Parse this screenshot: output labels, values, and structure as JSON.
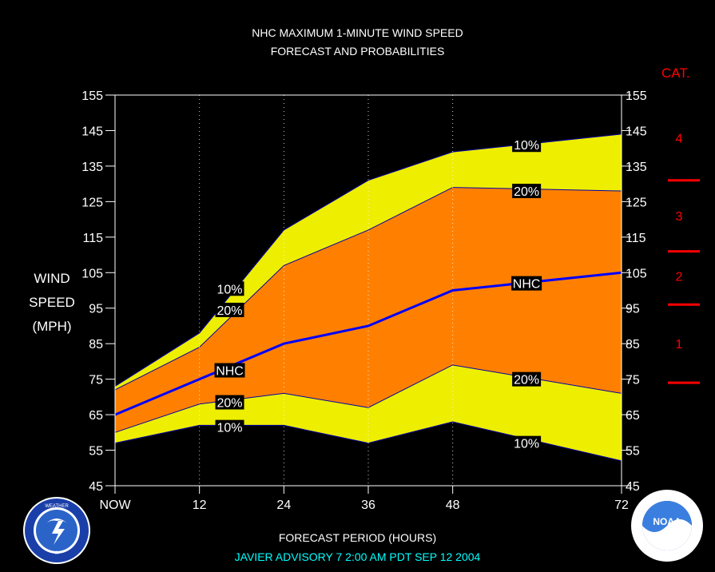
{
  "header": {
    "title_line1": "NHC MAXIMUM 1-MINUTE WIND SPEED",
    "title_line2": "FORECAST AND PROBABILITIES"
  },
  "ylabel_lines": [
    "WIND",
    "SPEED",
    "(MPH)"
  ],
  "cat_title": "CAT.",
  "xlabel": "FORECAST PERIOD (HOURS)",
  "advisory": "JAVIER   ADVISORY  7 2:00  AM  PDT  SEP  12  2004",
  "logos": {
    "left": "national-weather-service-logo",
    "right": "noaa-logo",
    "right_text": "NOAA"
  },
  "colors": {
    "background": "#000000",
    "band_outer": "#eeee00",
    "band_inner": "#ff8000",
    "nhc_line": "#0000ff",
    "category": "#ff0000",
    "advisory": "#00ffff"
  },
  "chart_data": {
    "type": "area",
    "x": [
      0,
      12,
      24,
      36,
      48,
      72
    ],
    "x_tick_labels": [
      "NOW",
      "12",
      "24",
      "36",
      "48",
      "72"
    ],
    "xlim": [
      0,
      72
    ],
    "ylim": [
      45,
      155
    ],
    "y_ticks": [
      45,
      55,
      65,
      75,
      85,
      95,
      105,
      115,
      125,
      135,
      145,
      155
    ],
    "grid": "vertical dotted at 12, 24, 36, 48",
    "series": [
      {
        "name": "10%",
        "values": [
          73,
          88,
          117,
          131,
          139,
          144
        ]
      },
      {
        "name": "20%",
        "values": [
          72,
          84,
          107,
          117,
          129,
          128
        ]
      },
      {
        "name": "NHC",
        "values": [
          65,
          75,
          85,
          90,
          100,
          105
        ]
      },
      {
        "name": "20%",
        "values": [
          60,
          68,
          71,
          67,
          79,
          71
        ]
      },
      {
        "name": "10%",
        "values": [
          57,
          62,
          62,
          57,
          63,
          52
        ]
      }
    ],
    "annotations": [
      {
        "text": "10%",
        "x": 16.3,
        "y": 100.5
      },
      {
        "text": "20%",
        "x": 16.3,
        "y": 94.5
      },
      {
        "text": "NHC",
        "x": 16.3,
        "y": 77.5
      },
      {
        "text": "20%",
        "x": 16.3,
        "y": 68.5
      },
      {
        "text": "10%",
        "x": 16.3,
        "y": 61.5
      },
      {
        "text": "10%",
        "x": 58.5,
        "y": 141
      },
      {
        "text": "20%",
        "x": 58.5,
        "y": 128
      },
      {
        "text": "NHC",
        "x": 58.5,
        "y": 102
      },
      {
        "text": "20%",
        "x": 58.5,
        "y": 75
      },
      {
        "text": "10%",
        "x": 58.5,
        "y": 57
      }
    ],
    "categories_scale": [
      {
        "label": "1",
        "y": 85
      },
      {
        "label": "2",
        "y": 104
      },
      {
        "label": "3",
        "y": 121
      },
      {
        "label": "4",
        "y": 143
      }
    ],
    "category_boundaries": [
      74,
      96,
      111,
      131
    ]
  }
}
